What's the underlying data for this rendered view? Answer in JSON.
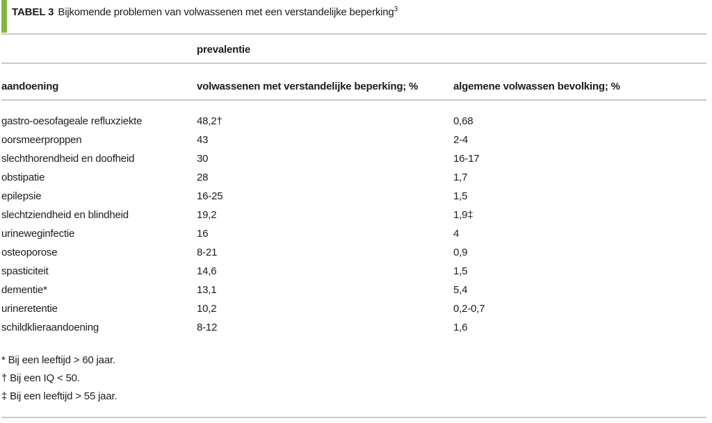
{
  "caption": {
    "label": "TABEL 3",
    "text": "Bijkomende problemen van volwassenen met een verstandelijke beperking",
    "reference": "3"
  },
  "table": {
    "group_header": "prevalentie",
    "columns": {
      "aandoening": "aandoening",
      "vb": "volwassenen met verstandelijke beperking; %",
      "algemeen": "algemene volwassen bevolking; %"
    },
    "rows": [
      {
        "aandoening": "gastro-oesofageale refluxziekte",
        "vb": "48,2†",
        "algemeen": "0,68"
      },
      {
        "aandoening": "oorsmeerproppen",
        "vb": "43",
        "algemeen": "2-4"
      },
      {
        "aandoening": "slechthorendheid en doofheid",
        "vb": "30",
        "algemeen": "16-17"
      },
      {
        "aandoening": "obstipatie",
        "vb": "28",
        "algemeen": "1,7"
      },
      {
        "aandoening": "epilepsie",
        "vb": "16-25",
        "algemeen": "1,5"
      },
      {
        "aandoening": "slechtziendheid en blindheid",
        "vb": "19,2",
        "algemeen": "1,9‡"
      },
      {
        "aandoening": "urineweginfectie",
        "vb": "16",
        "algemeen": "4"
      },
      {
        "aandoening": "osteoporose",
        "vb": "8-21",
        "algemeen": "0,9"
      },
      {
        "aandoening": "spasticiteit",
        "vb": "14,6",
        "algemeen": "1,5"
      },
      {
        "aandoening": "dementie*",
        "vb": "13,1",
        "algemeen": "5,4"
      },
      {
        "aandoening": "urineretentie",
        "vb": "10,2",
        "algemeen": "0,2-0,7"
      },
      {
        "aandoening": "schildklieraandoening",
        "vb": "8-12",
        "algemeen": "1,6"
      }
    ]
  },
  "footnotes": [
    "* Bij een leeftijd > 60 jaar.",
    "† Bij een IQ < 50.",
    "‡ Bij een leeftijd > 55 jaar."
  ],
  "colors": {
    "accent_green": "#7db83c",
    "rule_gray": "#c9c9c9",
    "text": "#1c1c1c"
  }
}
